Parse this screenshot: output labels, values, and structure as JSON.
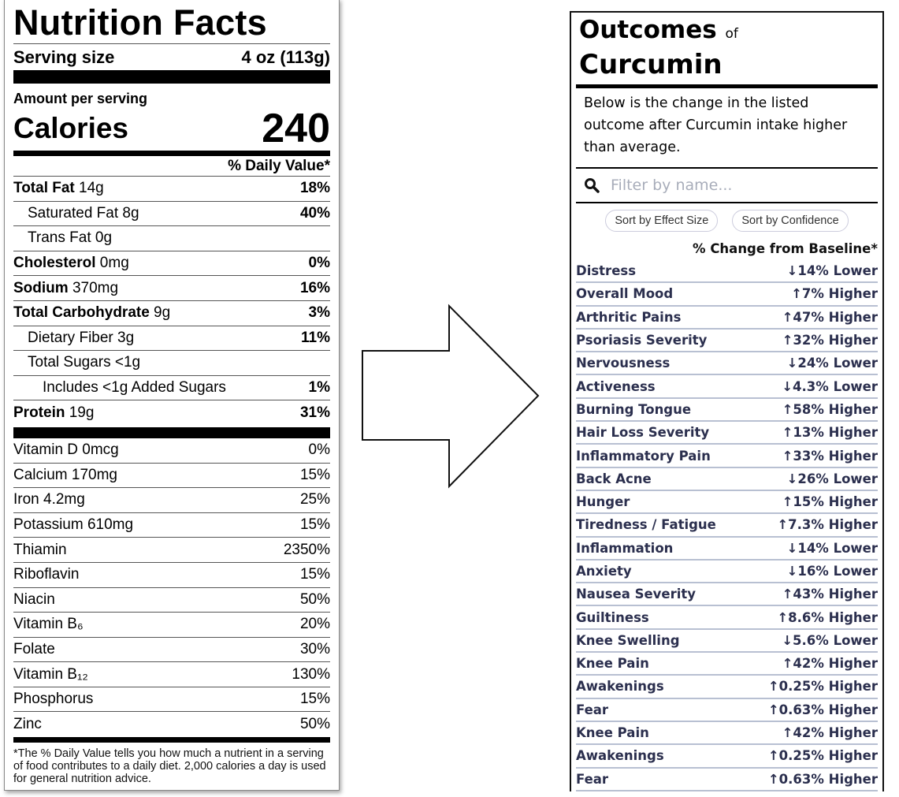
{
  "nutrition": {
    "title": "Nutrition Facts",
    "serving_label": "Serving size",
    "serving_value": "4 oz (113g)",
    "amount_label": "Amount per serving",
    "calories_label": "Calories",
    "calories_value": "240",
    "dv_header": "% Daily Value*",
    "main_rows": [
      {
        "label": "Total Fat",
        "amount": " 14g",
        "dv": "18%",
        "bold": true,
        "indent": 0
      },
      {
        "label": "Saturated Fat 8g",
        "amount": "",
        "dv": "40%",
        "bold": false,
        "indent": 1
      },
      {
        "label": "Trans Fat 0g",
        "amount": "",
        "dv": "",
        "bold": false,
        "indent": 1
      },
      {
        "label": "Cholesterol",
        "amount": " 0mg",
        "dv": "0%",
        "bold": true,
        "indent": 0
      },
      {
        "label": "Sodium",
        "amount": " 370mg",
        "dv": "16%",
        "bold": true,
        "indent": 0
      },
      {
        "label": "Total Carbohydrate",
        "amount": " 9g",
        "dv": "3%",
        "bold": true,
        "indent": 0
      },
      {
        "label": "Dietary Fiber 3g",
        "amount": "",
        "dv": "11%",
        "bold": false,
        "indent": 1
      },
      {
        "label": "Total Sugars <1g",
        "amount": "",
        "dv": "",
        "bold": false,
        "indent": 1
      },
      {
        "label": "Includes <1g Added Sugars",
        "amount": "",
        "dv": "1%",
        "bold": false,
        "indent": 2
      },
      {
        "label": "Protein",
        "amount": " 19g",
        "dv": "31%",
        "bold": true,
        "indent": 0
      }
    ],
    "vitamin_rows": [
      {
        "label": "Vitamin D 0mcg",
        "dv": "0%"
      },
      {
        "label": "Calcium 170mg",
        "dv": "15%"
      },
      {
        "label": "Iron 4.2mg",
        "dv": "25%"
      },
      {
        "label": "Potassium 610mg",
        "dv": "15%"
      },
      {
        "label": "Thiamin",
        "dv": "2350%"
      },
      {
        "label": "Riboflavin",
        "dv": "15%"
      },
      {
        "label": "Niacin",
        "dv": "50%"
      },
      {
        "label": "Vitamin B₆",
        "dv": "20%"
      },
      {
        "label": "Folate",
        "dv": "30%"
      },
      {
        "label": "Vitamin B₁₂",
        "dv": "130%"
      },
      {
        "label": "Phosphorus",
        "dv": "15%"
      },
      {
        "label": "Zinc",
        "dv": "50%"
      }
    ],
    "footnote": "*The % Daily Value tells you how much a nutrient in a serving of food contributes to a daily diet. 2,000 calories a day is used for general nutrition advice."
  },
  "arrow_icon": "right-arrow-outline",
  "outcomes": {
    "title": "Outcomes",
    "title_of": "of",
    "subject": "Curcumin",
    "description": "Below is the change in the listed outcome after Curcumin intake higher than average.",
    "search_icon": "magnifier",
    "search_placeholder": "Filter by name...",
    "sort_effect": "Sort by Effect Size",
    "sort_confidence": "Sort by Confidence",
    "column_header": "% Change from Baseline*",
    "text_color": "#2b2f4e",
    "divider_color": "#b8c0d2",
    "rows": [
      {
        "name": "Distress",
        "change": "↓14% Lower"
      },
      {
        "name": "Overall Mood",
        "change": "↑7% Higher"
      },
      {
        "name": "Arthritic Pains",
        "change": "↑47% Higher"
      },
      {
        "name": "Psoriasis Severity",
        "change": "↑32% Higher"
      },
      {
        "name": "Nervousness",
        "change": "↓24% Lower"
      },
      {
        "name": "Activeness",
        "change": "↓4.3% Lower"
      },
      {
        "name": "Burning Tongue",
        "change": "↑58% Higher"
      },
      {
        "name": "Hair Loss Severity",
        "change": "↑13% Higher"
      },
      {
        "name": "Inflammatory Pain",
        "change": "↑33% Higher"
      },
      {
        "name": "Back Acne",
        "change": "↓26% Lower"
      },
      {
        "name": "Hunger",
        "change": "↑15% Higher"
      },
      {
        "name": "Tiredness / Fatigue",
        "change": "↑7.3% Higher"
      },
      {
        "name": "Inflammation",
        "change": "↓14% Lower"
      },
      {
        "name": "Anxiety",
        "change": "↓16% Lower"
      },
      {
        "name": "Nausea Severity",
        "change": "↑43% Higher"
      },
      {
        "name": "Guiltiness",
        "change": "↑8.6% Higher"
      },
      {
        "name": "Knee Swelling",
        "change": "↓5.6% Lower"
      },
      {
        "name": "Knee Pain",
        "change": "↑42% Higher"
      },
      {
        "name": "Awakenings",
        "change": "↑0.25% Higher"
      },
      {
        "name": "Fear",
        "change": "↑0.63% Higher"
      },
      {
        "name": "Knee Pain",
        "change": "↑42% Higher"
      },
      {
        "name": "Awakenings",
        "change": "↑0.25% Higher"
      },
      {
        "name": "Fear",
        "change": "↑0.63% Higher"
      }
    ]
  }
}
